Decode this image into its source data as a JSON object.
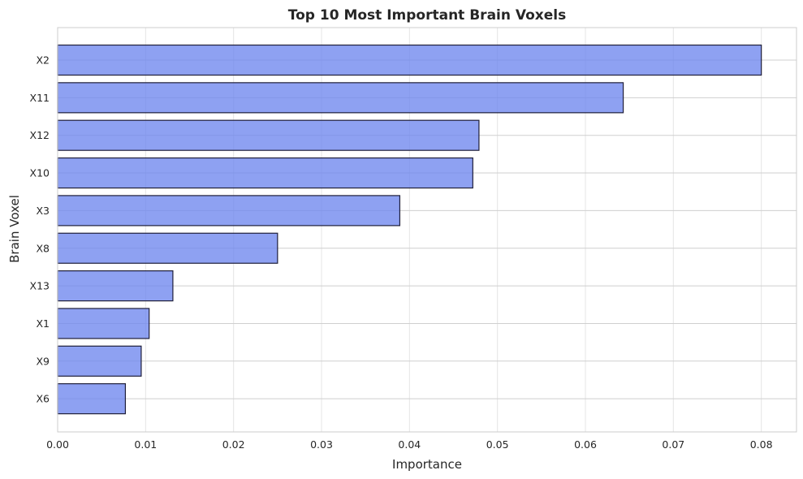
{
  "chart_data": {
    "type": "bar",
    "orientation": "horizontal",
    "title": "Top 10 Most Important Brain Voxels",
    "xlabel": "Importance",
    "ylabel": "Brain Voxel",
    "categories": [
      "X2",
      "X11",
      "X12",
      "X10",
      "X3",
      "X8",
      "X13",
      "X1",
      "X9",
      "X6"
    ],
    "values": [
      0.08,
      0.0643,
      0.0479,
      0.0472,
      0.0389,
      0.025,
      0.0131,
      0.0104,
      0.0095,
      0.0077
    ],
    "xlim": [
      0,
      0.084
    ],
    "xticks": [
      "0.00",
      "0.01",
      "0.02",
      "0.03",
      "0.04",
      "0.05",
      "0.06",
      "0.07",
      "0.08"
    ],
    "grid": true,
    "colors": {
      "bar_fill": "#6e86ee",
      "bar_edge": "#1f1f3a",
      "grid": "#e5e5e5",
      "frame": "#cccccc",
      "text": "#262626"
    }
  }
}
